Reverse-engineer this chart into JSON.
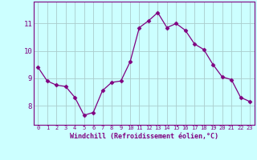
{
  "x": [
    0,
    1,
    2,
    3,
    4,
    5,
    6,
    7,
    8,
    9,
    10,
    11,
    12,
    13,
    14,
    15,
    16,
    17,
    18,
    19,
    20,
    21,
    22,
    23
  ],
  "y": [
    9.4,
    8.9,
    8.75,
    8.7,
    8.3,
    7.65,
    7.75,
    8.55,
    8.85,
    8.9,
    9.6,
    10.85,
    11.1,
    11.4,
    10.85,
    11.0,
    10.75,
    10.25,
    10.05,
    9.5,
    9.05,
    8.95,
    8.3,
    8.15
  ],
  "line_color": "#800080",
  "marker": "D",
  "marker_size": 2.5,
  "bg_color": "#ccffff",
  "grid_color": "#aacccc",
  "xlabel": "Windchill (Refroidissement éolien,°C)",
  "xlim": [
    -0.5,
    23.5
  ],
  "ylim": [
    7.3,
    11.8
  ],
  "yticks": [
    8,
    9,
    10,
    11
  ],
  "xticks": [
    0,
    1,
    2,
    3,
    4,
    5,
    6,
    7,
    8,
    9,
    10,
    11,
    12,
    13,
    14,
    15,
    16,
    17,
    18,
    19,
    20,
    21,
    22,
    23
  ],
  "tick_color": "#800080",
  "label_color": "#800080",
  "spine_color": "#800080",
  "xtick_fontsize": 5.0,
  "ytick_fontsize": 6.5,
  "xlabel_fontsize": 6.0
}
